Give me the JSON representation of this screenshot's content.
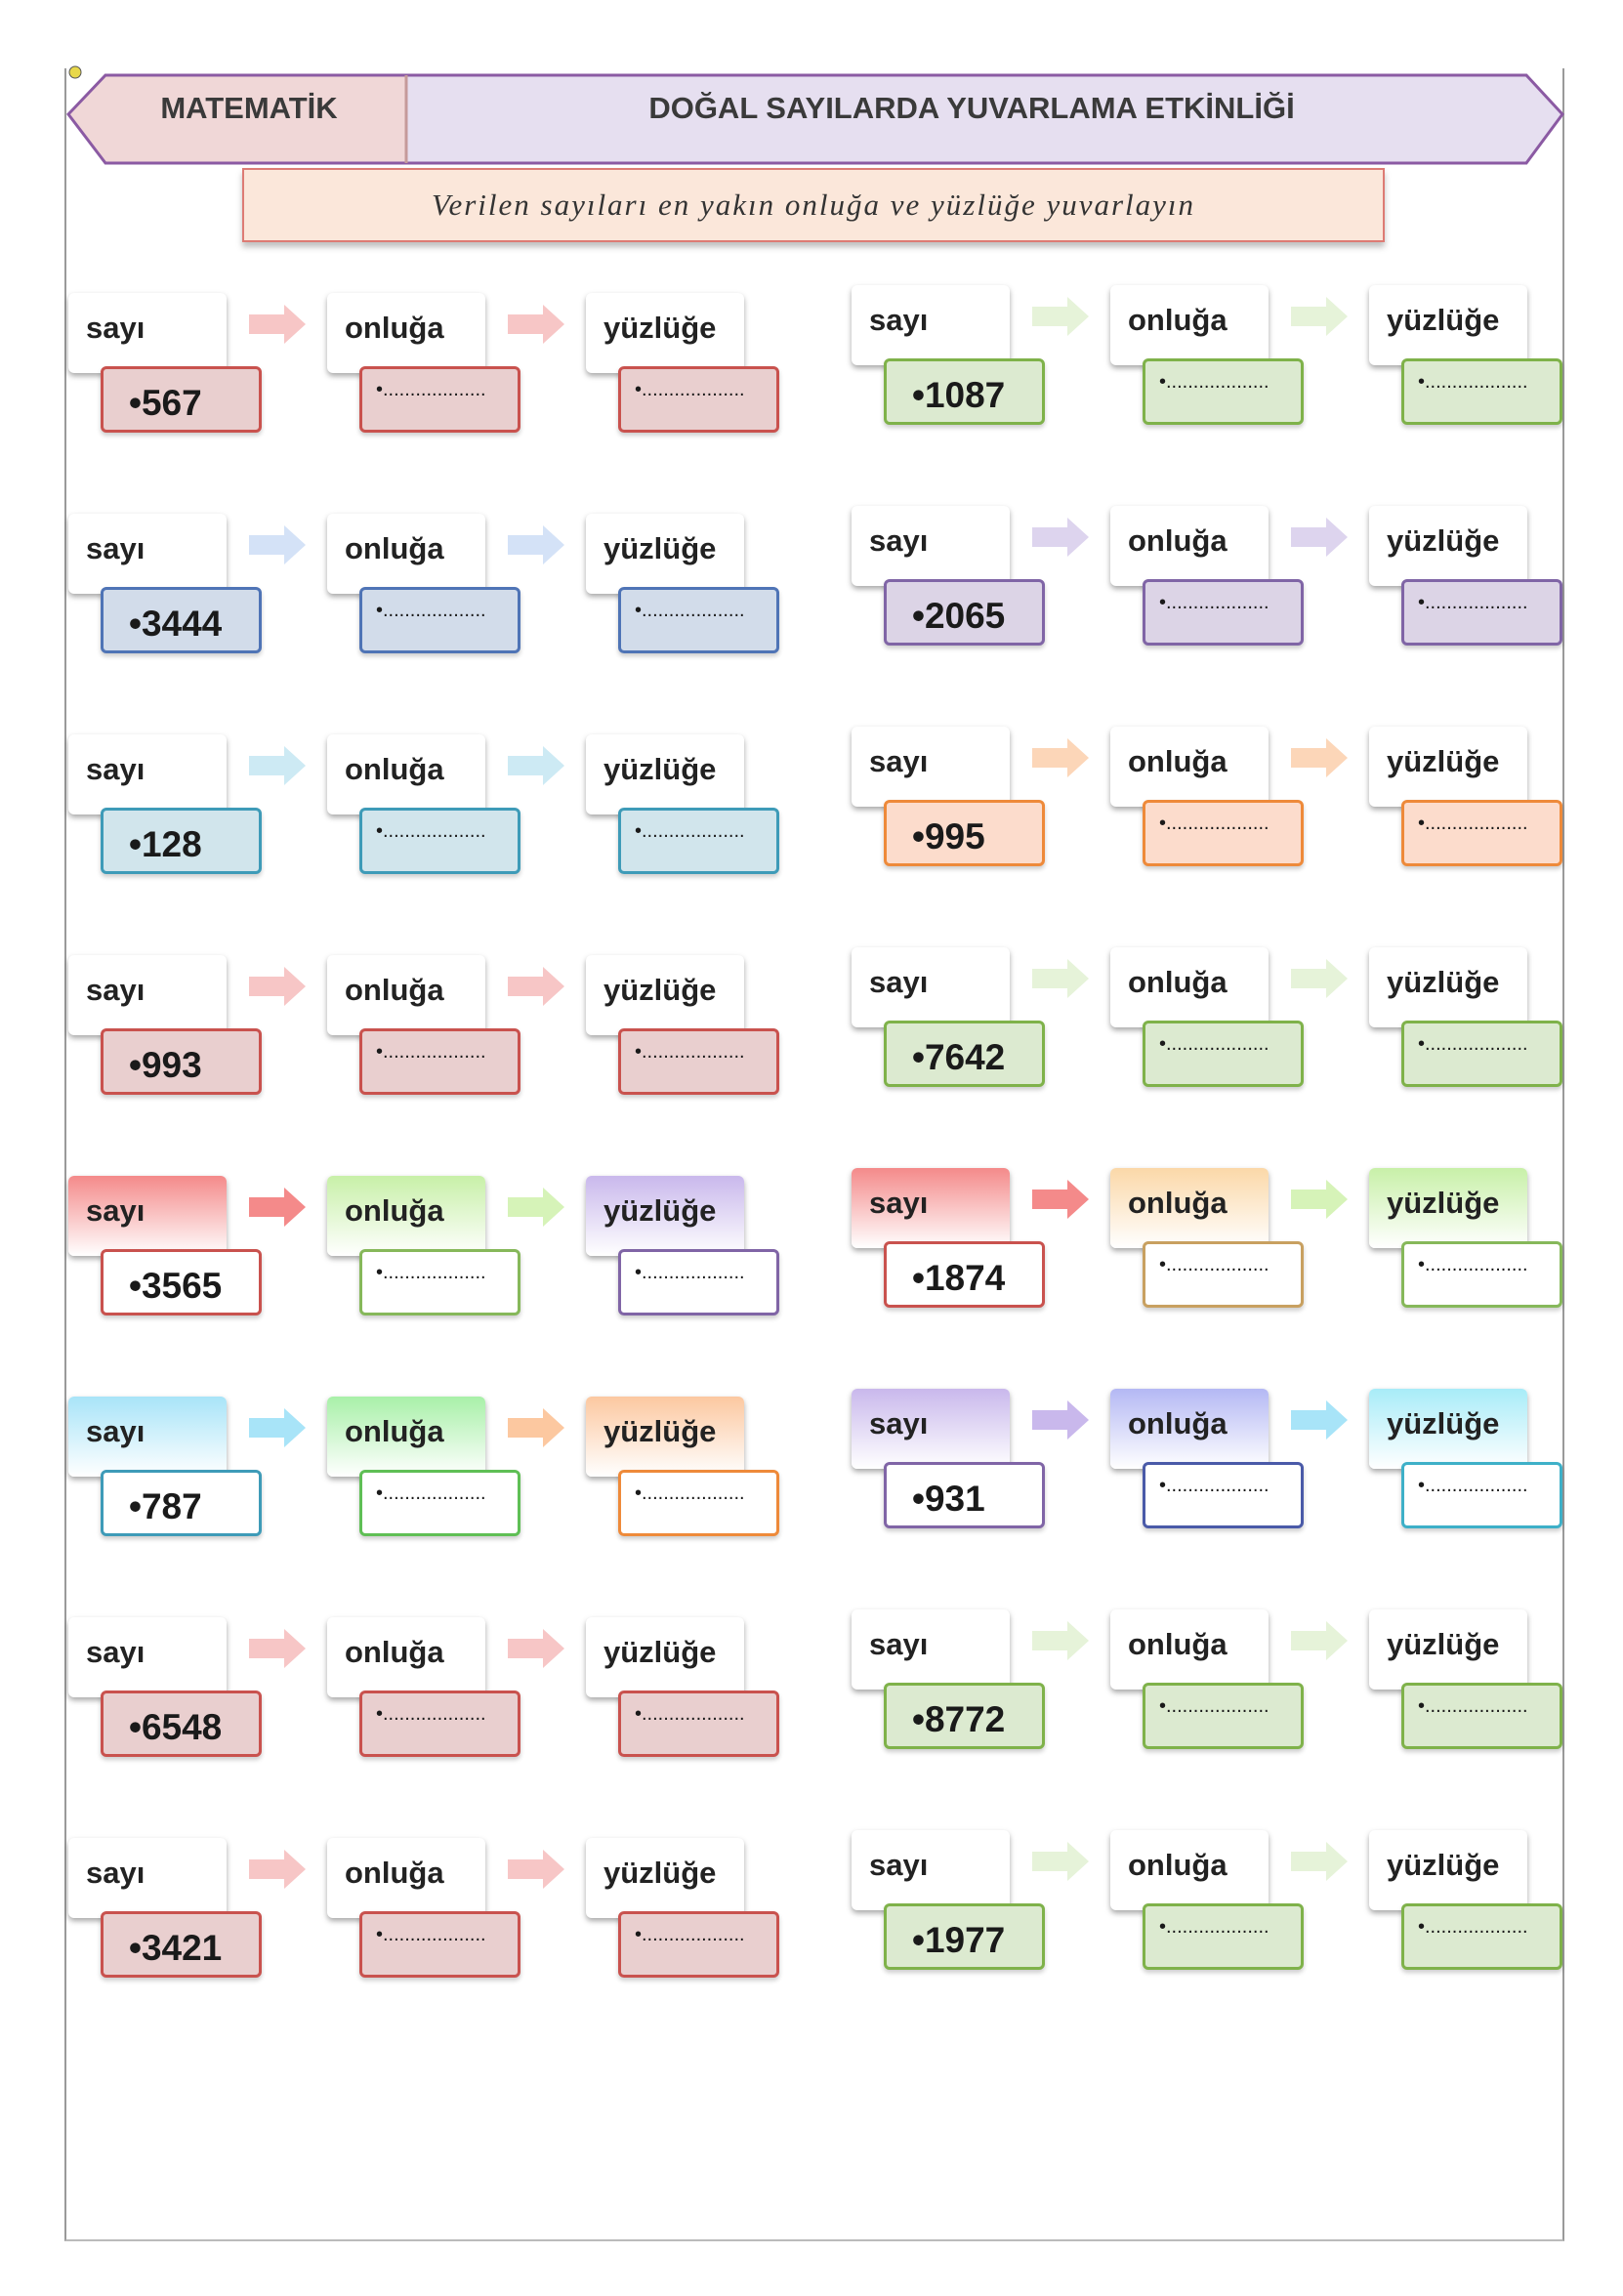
{
  "header": {
    "subject": "MATEMATİK",
    "title": "DOĞAL SAYILARDA YUVARLAMA ETKİNLİĞİ",
    "instruction": "Verilen sayıları en yakın onluğa ve yüzlüğe yuvarlayın"
  },
  "labels": {
    "sayi": "sayı",
    "onluga": "onluğa",
    "yuzluge": "yüzlüğe",
    "blank": "•..................."
  },
  "exercises": [
    {
      "number": "•567",
      "style": "pale",
      "colors": [
        "#c9524e",
        "#c9524e",
        "#c9524e"
      ],
      "fills": [
        "#e9cfcf",
        "#e9cfcf",
        "#e9cfcf"
      ],
      "cardFills": [
        "#ffffff",
        "#ffffff",
        "#ffffff"
      ],
      "arrows": [
        "#f7c6c6",
        "#f7c6c6"
      ]
    },
    {
      "number": "•1087",
      "style": "pale",
      "colors": [
        "#7fb24a",
        "#7fb24a",
        "#7fb24a"
      ],
      "fills": [
        "#dcead0",
        "#dcead0",
        "#dcead0"
      ],
      "cardFills": [
        "#ffffff",
        "#ffffff",
        "#ffffff"
      ],
      "arrows": [
        "#e6f3d9",
        "#e6f3d9"
      ]
    },
    {
      "number": "•3444",
      "style": "pale",
      "colors": [
        "#4f74b6",
        "#4f74b6",
        "#4f74b6"
      ],
      "fills": [
        "#d2dcea",
        "#d2dcea",
        "#d2dcea"
      ],
      "cardFills": [
        "#ffffff",
        "#ffffff",
        "#ffffff"
      ],
      "arrows": [
        "#d4e2f7",
        "#d4e2f7"
      ]
    },
    {
      "number": "•2065",
      "style": "pale",
      "colors": [
        "#8065a6",
        "#8065a6",
        "#8065a6"
      ],
      "fills": [
        "#dcd4e6",
        "#dcd4e6",
        "#dcd4e6"
      ],
      "cardFills": [
        "#ffffff",
        "#ffffff",
        "#ffffff"
      ],
      "arrows": [
        "#ddd4ee",
        "#ddd4ee"
      ]
    },
    {
      "number": "•128",
      "style": "pale",
      "colors": [
        "#3e9bb8",
        "#3e9bb8",
        "#3e9bb8"
      ],
      "fills": [
        "#d1e5ec",
        "#d1e5ec",
        "#d1e5ec"
      ],
      "cardFills": [
        "#ffffff",
        "#ffffff",
        "#ffffff"
      ],
      "arrows": [
        "#cdeaf4",
        "#cdeaf4"
      ]
    },
    {
      "number": "•995",
      "style": "pale",
      "colors": [
        "#ee8a3a",
        "#ee8a3a",
        "#ee8a3a"
      ],
      "fills": [
        "#fcdccc",
        "#fcdccc",
        "#fcdccc"
      ],
      "cardFills": [
        "#ffffff",
        "#ffffff",
        "#ffffff"
      ],
      "arrows": [
        "#fcd6b8",
        "#fcd6b8"
      ]
    },
    {
      "number": "•993",
      "style": "pale",
      "colors": [
        "#c9524e",
        "#c9524e",
        "#c9524e"
      ],
      "fills": [
        "#e9cfcf",
        "#e9cfcf",
        "#e9cfcf"
      ],
      "cardFills": [
        "#ffffff",
        "#ffffff",
        "#ffffff"
      ],
      "arrows": [
        "#f7c6c6",
        "#f7c6c6"
      ]
    },
    {
      "number": "•7642",
      "style": "pale",
      "colors": [
        "#7fb24a",
        "#7fb24a",
        "#7fb24a"
      ],
      "fills": [
        "#dcead0",
        "#dcead0",
        "#dcead0"
      ],
      "cardFills": [
        "#ffffff",
        "#ffffff",
        "#ffffff"
      ],
      "arrows": [
        "#e6f3d9",
        "#e6f3d9"
      ]
    },
    {
      "number": "•3565",
      "style": "vivid",
      "colors": [
        "#c9524e",
        "#86b85a",
        "#8065a6"
      ],
      "fills": [
        "#ffffff",
        "#ffffff",
        "#ffffff"
      ],
      "cardFills": [
        "#f48a8a",
        "#c8f0a8",
        "#c9b8ec"
      ],
      "arrows": [
        "#f48a8a",
        "#d6f3b8"
      ]
    },
    {
      "number": "•1874",
      "style": "vivid",
      "colors": [
        "#c9524e",
        "#c8a060",
        "#86b85a"
      ],
      "fills": [
        "#ffffff",
        "#ffffff",
        "#ffffff"
      ],
      "cardFills": [
        "#f48a8a",
        "#fbd8a8",
        "#c8f0a8"
      ],
      "arrows": [
        "#f48a8a",
        "#d6f3b8"
      ]
    },
    {
      "number": "•787",
      "style": "vivid",
      "colors": [
        "#3e9bb8",
        "#5fbf55",
        "#ee8a3a"
      ],
      "fills": [
        "#ffffff",
        "#ffffff",
        "#ffffff"
      ],
      "cardFills": [
        "#a8e4f8",
        "#a8f0a8",
        "#fcc8a0"
      ],
      "arrows": [
        "#a8e4f8",
        "#fcc8a0"
      ]
    },
    {
      "number": "•931",
      "style": "vivid",
      "colors": [
        "#8065a6",
        "#4a5aa8",
        "#3eb0c8"
      ],
      "fills": [
        "#ffffff",
        "#ffffff",
        "#ffffff"
      ],
      "cardFills": [
        "#c9b8ec",
        "#b4b8f4",
        "#a8ecf8"
      ],
      "arrows": [
        "#c9b8ec",
        "#a8e4f8"
      ]
    },
    {
      "number": "•6548",
      "style": "pale",
      "colors": [
        "#c9524e",
        "#c9524e",
        "#c9524e"
      ],
      "fills": [
        "#e9cfcf",
        "#e9cfcf",
        "#e9cfcf"
      ],
      "cardFills": [
        "#ffffff",
        "#ffffff",
        "#ffffff"
      ],
      "arrows": [
        "#f7c6c6",
        "#f7c6c6"
      ]
    },
    {
      "number": "•8772",
      "style": "pale",
      "colors": [
        "#7fb24a",
        "#7fb24a",
        "#7fb24a"
      ],
      "fills": [
        "#dcead0",
        "#dcead0",
        "#dcead0"
      ],
      "cardFills": [
        "#ffffff",
        "#ffffff",
        "#ffffff"
      ],
      "arrows": [
        "#e6f3d9",
        "#e6f3d9"
      ]
    },
    {
      "number": "•3421",
      "style": "pale",
      "colors": [
        "#c9524e",
        "#c9524e",
        "#c9524e"
      ],
      "fills": [
        "#e9cfcf",
        "#e9cfcf",
        "#e9cfcf"
      ],
      "cardFills": [
        "#ffffff",
        "#ffffff",
        "#ffffff"
      ],
      "arrows": [
        "#f7c6c6",
        "#f7c6c6"
      ]
    },
    {
      "number": "•1977",
      "style": "pale",
      "colors": [
        "#7fb24a",
        "#7fb24a",
        "#7fb24a"
      ],
      "fills": [
        "#dcead0",
        "#dcead0",
        "#dcead0"
      ],
      "cardFills": [
        "#ffffff",
        "#ffffff",
        "#ffffff"
      ],
      "arrows": [
        "#e6f3d9",
        "#e6f3d9"
      ]
    }
  ]
}
